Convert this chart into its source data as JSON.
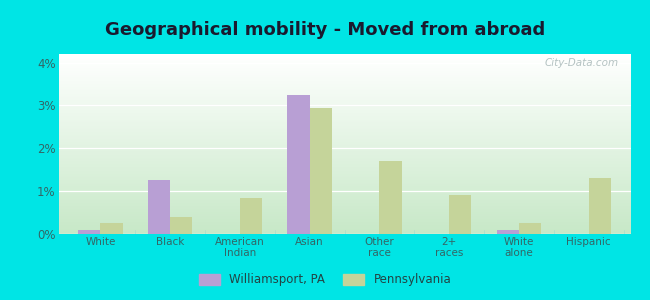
{
  "title": "Geographical mobility - Moved from abroad",
  "categories": [
    "White",
    "Black",
    "American\nIndian",
    "Asian",
    "Other\nrace",
    "2+\nraces",
    "White\nalone",
    "Hispanic"
  ],
  "williamsport": [
    0.1,
    1.25,
    0.0,
    3.25,
    0.0,
    0.0,
    0.1,
    0.0
  ],
  "pennsylvania": [
    0.25,
    0.4,
    0.85,
    2.95,
    1.7,
    0.9,
    0.25,
    1.3
  ],
  "bar_color_city": "#b89fd4",
  "bar_color_state": "#c5d49a",
  "ylim_max": 4.2,
  "yticks": [
    0,
    1,
    2,
    3,
    4
  ],
  "ytick_labels": [
    "0%",
    "1%",
    "2%",
    "3%",
    "4%"
  ],
  "legend_city": "Williamsport, PA",
  "legend_state": "Pennsylvania",
  "fig_bg_color": "#00e5e5",
  "plot_bg_color_top": "#f0faf0",
  "plot_bg_color_bottom": "#c8eac8",
  "watermark": "City-Data.com",
  "bar_width": 0.32,
  "title_fontsize": 13,
  "title_color": "#1a1a2e",
  "tick_label_color": "#336666",
  "legend_text_color": "#224444"
}
